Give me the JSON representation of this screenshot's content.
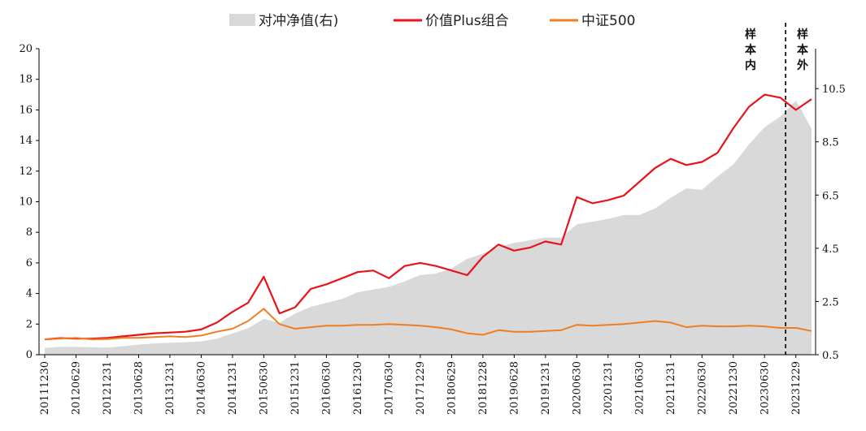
{
  "chart_data": {
    "type": "line",
    "x": [
      "20111230",
      "20120330",
      "20120629",
      "20120928",
      "20121231",
      "20130329",
      "20130628",
      "20130930",
      "20131231",
      "20140331",
      "20140630",
      "20140930",
      "20141231",
      "20150331",
      "20150630",
      "20150930",
      "20151231",
      "20160331",
      "20160630",
      "20160930",
      "20161230",
      "20170331",
      "20170630",
      "20170929",
      "20171229",
      "20180330",
      "20180629",
      "20180928",
      "20181228",
      "20190329",
      "20190628",
      "20190930",
      "20191231",
      "20200331",
      "20200630",
      "20200930",
      "20201231",
      "20210331",
      "20210630",
      "20210930",
      "20211231",
      "20220331",
      "20220630",
      "20220930",
      "20221230",
      "20230331",
      "20230630",
      "20230928",
      "20231229",
      "20240329"
    ],
    "tick_labels": [
      "20111230",
      "20120629",
      "20121231",
      "20130628",
      "20131231",
      "20140630",
      "20141231",
      "20150630",
      "20151231",
      "20160630",
      "20161230",
      "20170630",
      "20171229",
      "20180629",
      "20181228",
      "20190628",
      "20191231",
      "20200630",
      "20201231",
      "20210630",
      "20211231",
      "20220630",
      "20221230",
      "20230630",
      "20231229"
    ],
    "series": [
      {
        "name": "对冲净值(右)",
        "type": "area",
        "axis": "right",
        "color": "#d9d9d9",
        "values": [
          0.75,
          0.8,
          0.8,
          0.78,
          0.77,
          0.82,
          0.88,
          0.92,
          0.95,
          0.97,
          1.0,
          1.1,
          1.3,
          1.5,
          1.85,
          1.7,
          2.05,
          2.3,
          2.45,
          2.6,
          2.85,
          2.95,
          3.05,
          3.25,
          3.5,
          3.55,
          3.75,
          4.1,
          4.3,
          4.55,
          4.7,
          4.8,
          4.9,
          4.9,
          5.4,
          5.5,
          5.6,
          5.75,
          5.75,
          6.0,
          6.4,
          6.75,
          6.7,
          7.2,
          7.65,
          8.4,
          9.05,
          9.45,
          10.05,
          9.0
        ]
      },
      {
        "name": "价值Plus组合",
        "type": "line",
        "axis": "left",
        "color": "#e8141b",
        "values": [
          1.0,
          1.08,
          1.05,
          1.05,
          1.1,
          1.2,
          1.3,
          1.4,
          1.45,
          1.5,
          1.65,
          2.1,
          2.8,
          3.4,
          5.1,
          2.7,
          3.1,
          4.3,
          4.6,
          5.0,
          5.4,
          5.5,
          5.0,
          5.8,
          6.0,
          5.8,
          5.5,
          5.2,
          6.4,
          7.2,
          6.8,
          7.0,
          7.4,
          7.2,
          10.3,
          9.9,
          10.1,
          10.4,
          11.3,
          12.2,
          12.8,
          12.4,
          12.6,
          13.2,
          14.8,
          16.2,
          17.0,
          16.8,
          16.0,
          16.7
        ]
      },
      {
        "name": "中证500",
        "type": "line",
        "axis": "left",
        "color": "#ef7d22",
        "values": [
          1.0,
          1.05,
          1.1,
          1.0,
          1.02,
          1.1,
          1.1,
          1.15,
          1.2,
          1.15,
          1.25,
          1.5,
          1.7,
          2.2,
          3.0,
          2.0,
          1.7,
          1.8,
          1.9,
          1.9,
          1.95,
          1.95,
          2.0,
          1.95,
          1.9,
          1.8,
          1.65,
          1.4,
          1.3,
          1.6,
          1.5,
          1.5,
          1.55,
          1.6,
          1.95,
          1.9,
          1.95,
          2.0,
          2.1,
          2.2,
          2.1,
          1.8,
          1.9,
          1.85,
          1.85,
          1.9,
          1.85,
          1.75,
          1.75,
          1.55
        ]
      }
    ],
    "yleft": {
      "min": 0,
      "max": 20,
      "ticks": [
        "0",
        "2",
        "4",
        "6",
        "8",
        "10",
        "12",
        "14",
        "16",
        "18",
        "20"
      ]
    },
    "yright": {
      "min": 0.5,
      "max": 12.0,
      "ticks": [
        "0.5",
        "2.5",
        "4.5",
        "6.5",
        "8.5",
        "10.5"
      ]
    },
    "annotations": {
      "divider_after": "20230928",
      "in_sample": [
        "样",
        "本",
        "内"
      ],
      "out_sample": [
        "样",
        "本",
        "外"
      ]
    },
    "legend_position": "top-center",
    "grid": false,
    "title": "",
    "xlabel": "",
    "ylabel": ""
  }
}
